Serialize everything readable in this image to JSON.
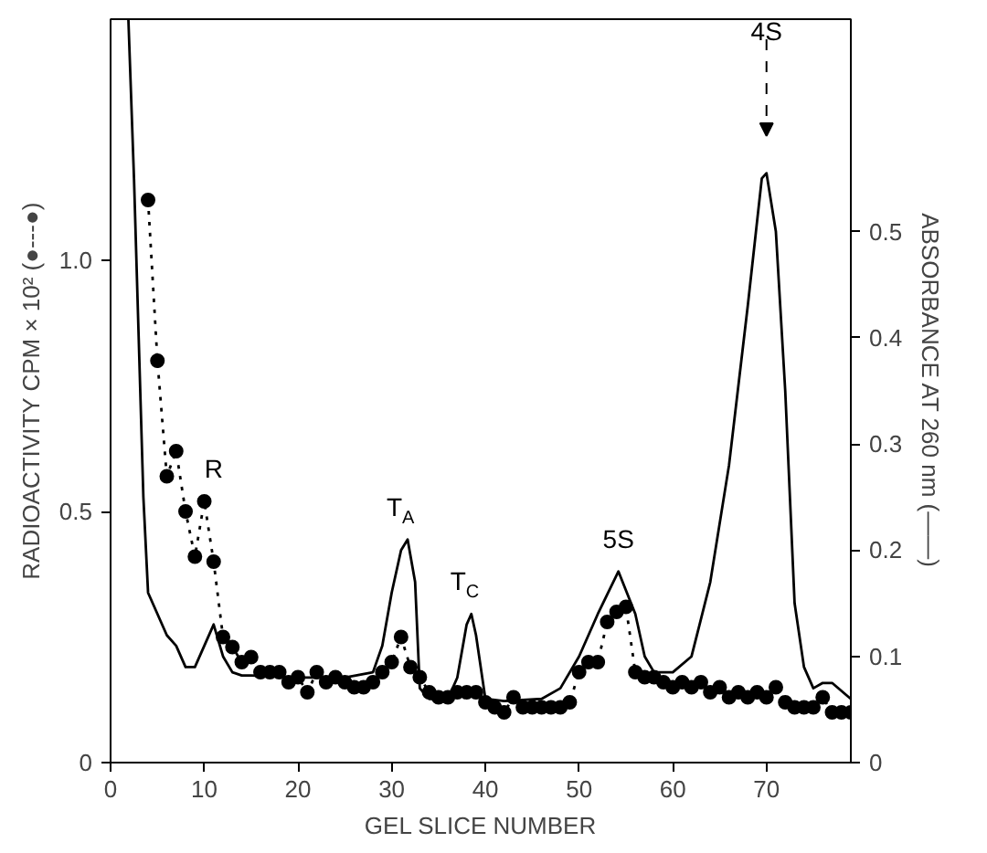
{
  "chart_data": {
    "type": "line",
    "xlabel": "GEL SLICE NUMBER",
    "ylabel": "RADIOACTIVITY CPM × 10² (●---●)",
    "y2label": "ABSORBANCE AT 260 nm (——)",
    "xlim": [
      0,
      79
    ],
    "xticks": [
      0,
      10,
      20,
      30,
      40,
      50,
      60,
      70
    ],
    "ylim": [
      0,
      1.48
    ],
    "yticks": [
      0,
      0.5,
      {
        "value": 1,
        "label": "1.0"
      }
    ],
    "y2lim": [
      0,
      0.7
    ],
    "y2ticks": [
      0,
      0.1,
      0.2,
      0.3,
      0.4,
      0.5
    ],
    "grid": false,
    "series": [
      {
        "marker": "circle",
        "line_style": "dotted",
        "color": "#000000",
        "x": [
          4,
          5,
          6,
          7,
          8,
          9,
          10,
          11,
          12,
          13,
          14,
          15,
          16,
          17,
          18,
          19,
          20,
          21,
          22,
          23,
          24,
          25,
          26,
          27,
          28,
          29,
          30,
          31,
          32,
          33,
          34,
          35,
          36,
          37,
          38,
          39,
          40,
          41,
          42,
          43,
          44,
          45,
          46,
          47,
          48,
          49,
          50,
          51,
          52,
          53,
          54,
          55,
          56,
          57,
          58,
          59,
          60,
          61,
          62,
          63,
          64,
          65,
          66,
          67,
          68,
          69,
          70,
          71,
          72,
          73,
          74,
          75,
          76,
          77,
          78,
          79
        ],
        "values": [
          1.12,
          0.8,
          0.57,
          0.62,
          0.5,
          0.41,
          0.52,
          0.4,
          0.25,
          0.23,
          0.2,
          0.21,
          0.18,
          0.18,
          0.18,
          0.16,
          0.17,
          0.14,
          0.18,
          0.16,
          0.17,
          0.16,
          0.15,
          0.15,
          0.16,
          0.18,
          0.2,
          0.25,
          0.19,
          0.17,
          0.14,
          0.13,
          0.13,
          0.14,
          0.14,
          0.14,
          0.12,
          0.11,
          0.1,
          0.13,
          0.11,
          0.11,
          0.11,
          0.11,
          0.11,
          0.12,
          0.18,
          0.2,
          0.2,
          0.28,
          0.3,
          0.31,
          0.18,
          0.17,
          0.17,
          0.16,
          0.15,
          0.16,
          0.15,
          0.16,
          0.14,
          0.15,
          0.13,
          0.14,
          0.13,
          0.14,
          0.13,
          0.15,
          0.12,
          0.11,
          0.11,
          0.11,
          0.13,
          0.1,
          0.1,
          0.1
        ]
      },
      {
        "axis": "y2",
        "marker": "none",
        "line_style": "solid",
        "color": "#000000",
        "x": [
          1.9,
          2.5,
          3,
          3.5,
          4,
          5,
          6,
          7,
          8,
          9,
          10,
          11,
          12,
          13,
          14,
          15,
          20,
          25,
          28,
          29,
          30,
          31,
          31.7,
          32.5,
          33,
          34,
          36,
          37,
          38,
          38.5,
          39,
          40,
          42,
          46,
          48,
          50,
          52,
          54.2,
          56,
          57,
          58,
          60,
          62,
          64,
          66,
          68,
          69.5,
          70,
          71,
          72,
          73,
          74,
          75,
          76,
          77,
          79
        ],
        "values": [
          0.7,
          0.55,
          0.4,
          0.25,
          0.16,
          0.14,
          0.12,
          0.11,
          0.09,
          0.09,
          0.11,
          0.13,
          0.1,
          0.085,
          0.082,
          0.082,
          0.08,
          0.08,
          0.085,
          0.11,
          0.16,
          0.2,
          0.21,
          0.17,
          0.07,
          0.06,
          0.06,
          0.08,
          0.13,
          0.14,
          0.12,
          0.06,
          0.058,
          0.06,
          0.07,
          0.1,
          0.14,
          0.18,
          0.14,
          0.1,
          0.085,
          0.085,
          0.1,
          0.17,
          0.28,
          0.43,
          0.55,
          0.555,
          0.5,
          0.35,
          0.15,
          0.09,
          0.07,
          0.075,
          0.075,
          0.06
        ]
      }
    ],
    "annotations": [
      "R",
      "T$_{A}$",
      "T$_{C}$",
      "5S",
      "4S"
    ]
  }
}
